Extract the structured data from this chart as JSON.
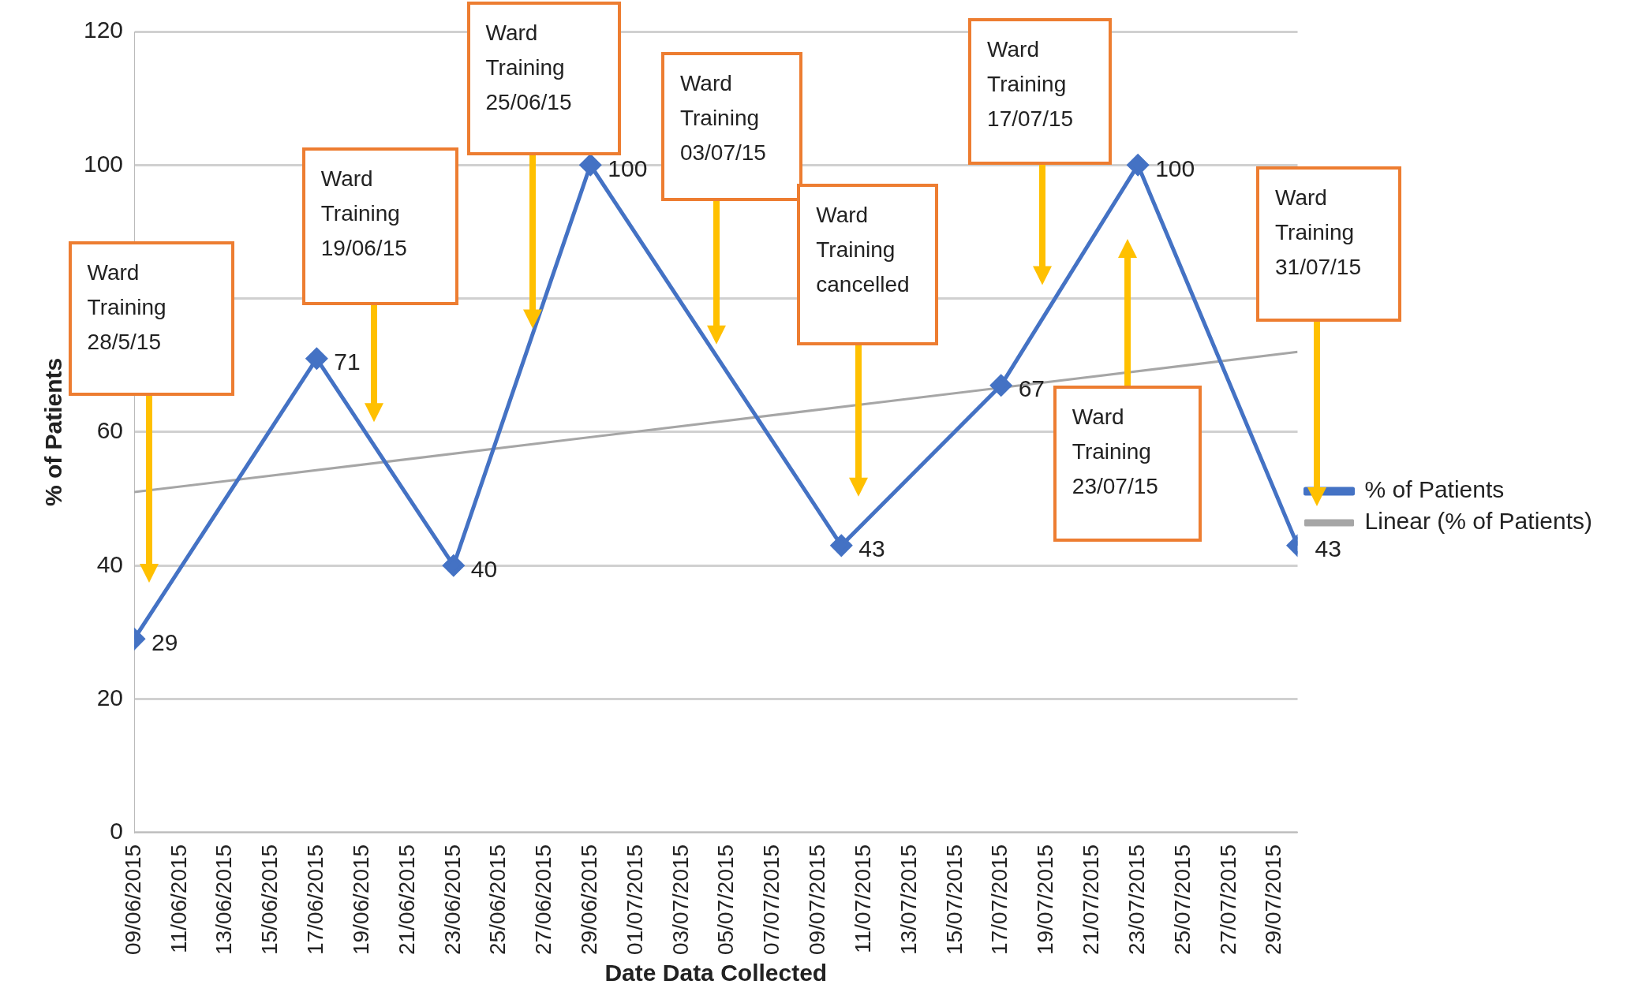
{
  "chart_data": {
    "type": "line",
    "xlabel": "Date Data Collected",
    "ylabel": "% of Patients",
    "xlim": [
      "2015-06-09",
      "2015-07-30"
    ],
    "ylim": [
      0,
      120
    ],
    "yticks": [
      0,
      20,
      40,
      60,
      {
        "value": 80,
        "label": null
      },
      100,
      120
    ],
    "xticks": [
      {
        "value": "2015-06-09",
        "label": "09/06/2015"
      },
      {
        "value": "2015-06-11",
        "label": "11/06/2015"
      },
      {
        "value": "2015-06-13",
        "label": "13/06/2015"
      },
      {
        "value": "2015-06-15",
        "label": "15/06/2015"
      },
      {
        "value": "2015-06-17",
        "label": "17/06/2015"
      },
      {
        "value": "2015-06-19",
        "label": "19/06/2015"
      },
      {
        "value": "2015-06-21",
        "label": "21/06/2015"
      },
      {
        "value": "2015-06-23",
        "label": "23/06/2015"
      },
      {
        "value": "2015-06-25",
        "label": "25/06/2015"
      },
      {
        "value": "2015-06-27",
        "label": "27/06/2015"
      },
      {
        "value": "2015-06-29",
        "label": "29/06/2015"
      },
      {
        "value": "2015-07-01",
        "label": "01/07/2015"
      },
      {
        "value": "2015-07-03",
        "label": "03/07/2015"
      },
      {
        "value": "2015-07-05",
        "label": "05/07/2015"
      },
      {
        "value": "2015-07-07",
        "label": "07/07/2015"
      },
      {
        "value": "2015-07-09",
        "label": "09/07/2015"
      },
      {
        "value": "2015-07-11",
        "label": "11/07/2015"
      },
      {
        "value": "2015-07-13",
        "label": "13/07/2015"
      },
      {
        "value": "2015-07-15",
        "label": "15/07/2015"
      },
      {
        "value": "2015-07-17",
        "label": "17/07/2015"
      },
      {
        "value": "2015-07-19",
        "label": "19/07/2015"
      },
      {
        "value": "2015-07-21",
        "label": "21/07/2015"
      },
      {
        "value": "2015-07-23",
        "label": "23/07/2015"
      },
      {
        "value": "2015-07-25",
        "label": "25/07/2015"
      },
      {
        "value": "2015-07-27",
        "label": "27/07/2015"
      },
      {
        "value": "2015-07-29",
        "label": "29/07/2015"
      }
    ],
    "series": [
      {
        "name": "% of Patients",
        "color": "#4472c4",
        "marker": "diamond",
        "x": [
          "2015-06-09",
          "2015-06-17",
          "2015-06-23",
          "2015-06-29",
          "2015-07-10",
          "2015-07-17",
          "2015-07-23",
          "2015-07-30"
        ],
        "values": [
          29,
          71,
          40,
          100,
          43,
          67,
          100,
          43
        ],
        "value_labels": [
          "29",
          "71",
          "40",
          "100",
          "43",
          "67",
          "100",
          "43"
        ]
      },
      {
        "name": "Linear (% of Patients)",
        "color": "#a6a6a6",
        "marker": "none",
        "x": [
          "2015-06-09",
          "2015-07-30"
        ],
        "values": [
          51,
          72
        ]
      }
    ],
    "grid": "y",
    "legend": "right",
    "annotations": [
      "Ward\nTraining\n28/5/15",
      "Ward\nTraining\n19/06/15",
      "Ward\nTraining\n25/06/15",
      "Ward\nTraining\n03/07/15",
      "Ward\nTraining\ncancelled",
      "Ward\nTraining\n17/07/15",
      "Ward\nTraining\n23/07/15",
      "Ward\nTraining\n31/07/15"
    ]
  }
}
